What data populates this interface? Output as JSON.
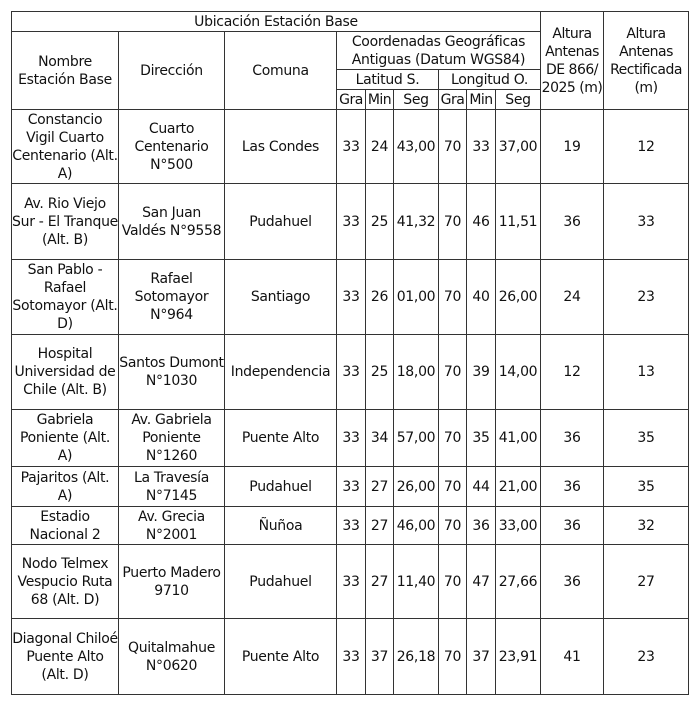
{
  "header": {
    "ubicacion": "Ubicación Estación Base",
    "nombre": "Nombre Estación Base",
    "direccion": "Dirección",
    "comuna": "Comuna",
    "coordenadas": "Coordenadas Geográficas Antiguas (Datum WGS84)",
    "latitud": "Latitud S.",
    "longitud": "Longitud O.",
    "gra": "Gra",
    "min": "Min",
    "seg": "Seg",
    "altura_866": "Altura Antenas DE 866/ 2025 (m)",
    "altura_rect": "Altura Antenas Rectificada (m)"
  },
  "rows": [
    {
      "nombre": "Constancio Vigil Cuarto Centenario (Alt. A)",
      "direccion": "Cuarto Centenario N°500",
      "comuna": "Las Condes",
      "lat_gra": "33",
      "lat_min": "24",
      "lat_seg": "43,00",
      "lon_gra": "70",
      "lon_min": "33",
      "lon_seg": "37,00",
      "altura_866": "19",
      "altura_rect": "12"
    },
    {
      "nombre": "Av. Rio Viejo Sur - El Tranque (Alt. B)",
      "direccion": "San Juan Valdés N°9558",
      "comuna": "Pudahuel",
      "lat_gra": "33",
      "lat_min": "25",
      "lat_seg": "41,32",
      "lon_gra": "70",
      "lon_min": "46",
      "lon_seg": "11,51",
      "altura_866": "36",
      "altura_rect": "33"
    },
    {
      "nombre": "San Pablo - Rafael Sotomayor (Alt. D)",
      "direccion": "Rafael Sotomayor N°964",
      "comuna": "Santiago",
      "lat_gra": "33",
      "lat_min": "26",
      "lat_seg": "01,00",
      "lon_gra": "70",
      "lon_min": "40",
      "lon_seg": "26,00",
      "altura_866": "24",
      "altura_rect": "23"
    },
    {
      "nombre": "Hospital Universidad de Chile (Alt. B)",
      "direccion": "Santos Dumont N°1030",
      "comuna": "Independencia",
      "lat_gra": "33",
      "lat_min": "25",
      "lat_seg": "18,00",
      "lon_gra": "70",
      "lon_min": "39",
      "lon_seg": "14,00",
      "altura_866": "12",
      "altura_rect": "13"
    },
    {
      "nombre": "Gabriela Poniente (Alt. A)",
      "direccion": "Av. Gabriela Poniente N°1260",
      "comuna": "Puente Alto",
      "lat_gra": "33",
      "lat_min": "34",
      "lat_seg": "57,00",
      "lon_gra": "70",
      "lon_min": "35",
      "lon_seg": "41,00",
      "altura_866": "36",
      "altura_rect": "35"
    },
    {
      "nombre": "Pajaritos (Alt. A)",
      "direccion": "La Travesía N°7145",
      "comuna": "Pudahuel",
      "lat_gra": "33",
      "lat_min": "27",
      "lat_seg": "26,00",
      "lon_gra": "70",
      "lon_min": "44",
      "lon_seg": "21,00",
      "altura_866": "36",
      "altura_rect": "35"
    },
    {
      "nombre": "Estadio Nacional 2",
      "direccion": "Av. Grecia N°2001",
      "comuna": "Ñuñoa",
      "lat_gra": "33",
      "lat_min": "27",
      "lat_seg": "46,00",
      "lon_gra": "70",
      "lon_min": "36",
      "lon_seg": "33,00",
      "altura_866": "36",
      "altura_rect": "32"
    },
    {
      "nombre": "Nodo Telmex Vespucio Ruta 68 (Alt. D)",
      "direccion": "Puerto Madero 9710",
      "comuna": "Pudahuel",
      "lat_gra": "33",
      "lat_min": "27",
      "lat_seg": "11,40",
      "lon_gra": "70",
      "lon_min": "47",
      "lon_seg": "27,66",
      "altura_866": "36",
      "altura_rect": "27"
    },
    {
      "nombre": "Diagonal Chiloé Puente Alto (Alt. D)",
      "direccion": "Quitalmahue N°0620",
      "comuna": "Puente Alto",
      "lat_gra": "33",
      "lat_min": "37",
      "lat_seg": "26,18",
      "lon_gra": "70",
      "lon_min": "37",
      "lon_seg": "23,91",
      "altura_866": "41",
      "altura_rect": "23"
    }
  ]
}
